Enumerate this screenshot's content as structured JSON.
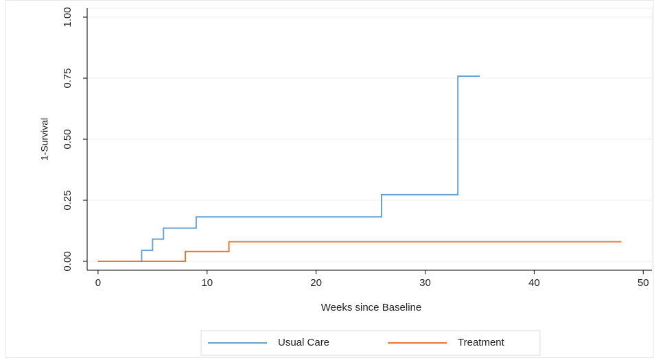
{
  "chart_data": {
    "type": "step",
    "x_label": "Weeks since Baseline",
    "y_label": "1-Survival",
    "xlim": [
      -1,
      50.8
    ],
    "ylim": [
      -0.0365,
      1.0365
    ],
    "xticks": [
      0,
      10,
      20,
      30,
      40,
      50
    ],
    "yticks": [
      {
        "value": 0,
        "label": "0.00"
      },
      {
        "value": 0.25,
        "label": "0.25"
      },
      {
        "value": 0.5,
        "label": "0.50"
      },
      {
        "value": 0.75,
        "label": "0.75"
      },
      {
        "value": 1,
        "label": "1.00"
      }
    ],
    "grid": true,
    "legend": "bottom",
    "series": [
      {
        "name": "Usual Care",
        "color": "#6a9fd0",
        "x": [
          0,
          4,
          5,
          6,
          9,
          26,
          33,
          35
        ],
        "values": [
          0,
          0.045,
          0.091,
          0.136,
          0.182,
          0.273,
          0.758,
          0.758
        ]
      },
      {
        "name": "Treatment",
        "color": "#e8772e",
        "x": [
          0,
          8,
          12,
          48
        ],
        "values": [
          0,
          0.04,
          0.08,
          0.08
        ]
      }
    ]
  }
}
